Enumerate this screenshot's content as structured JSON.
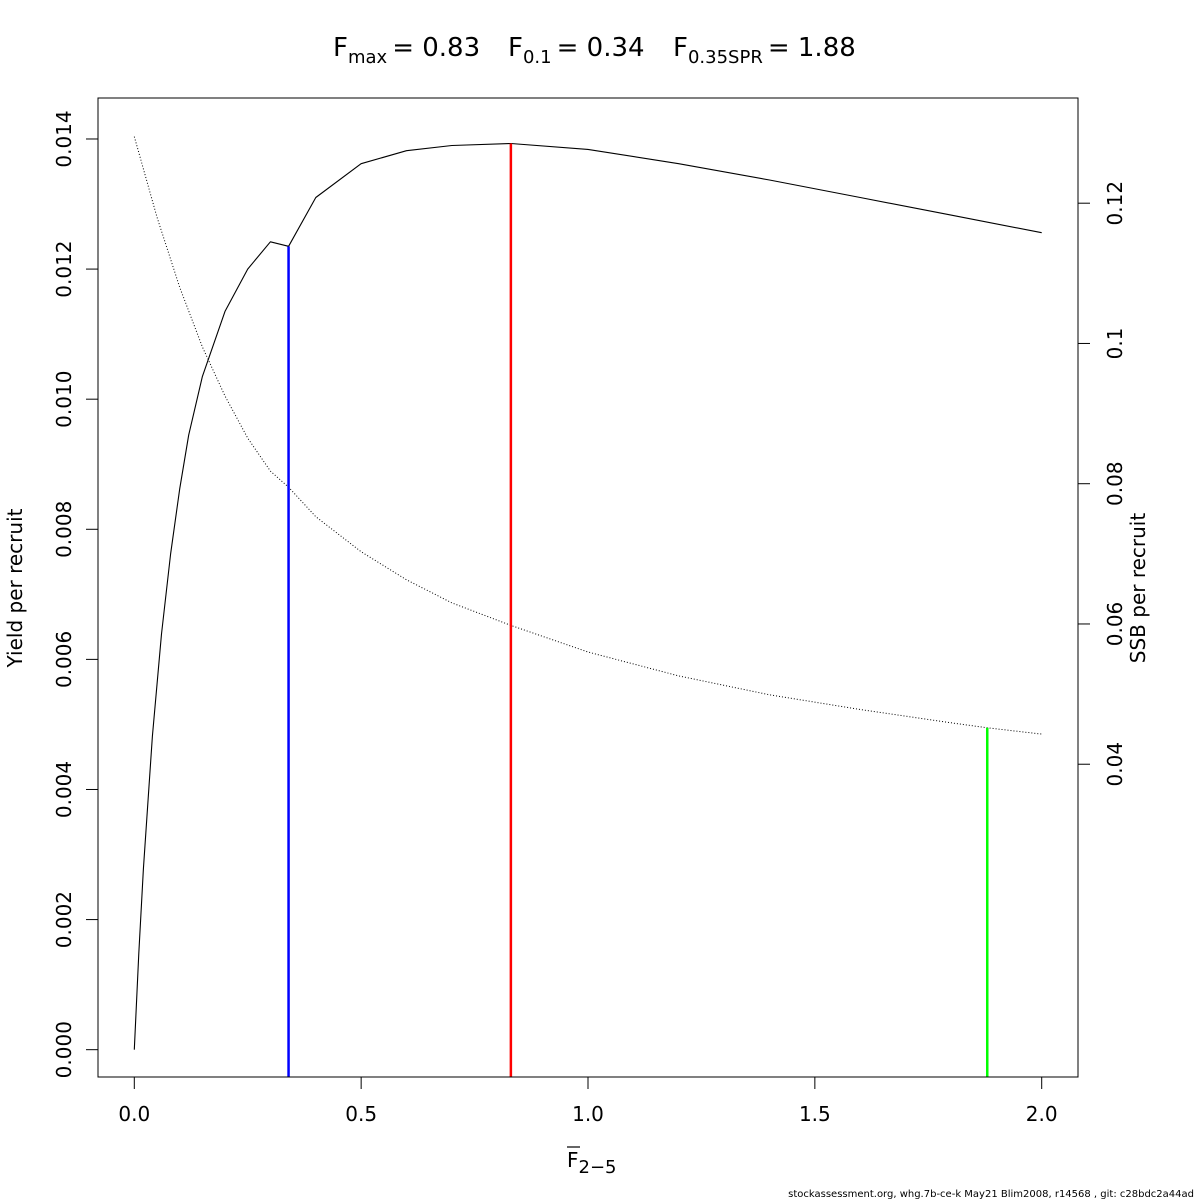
{
  "chart_data": {
    "type": "line",
    "title": {
      "fmax": {
        "sym": "F",
        "sub": "max",
        "eq": "= 0.83"
      },
      "f01": {
        "sym": "F",
        "sub": "0.1",
        "eq": "= 0.34"
      },
      "fspr": {
        "sym": "F",
        "sub": "0.35SPR",
        "eq": "= 1.88"
      }
    },
    "xlabel": {
      "sym": "F",
      "sub": "2−5"
    },
    "ylabel": "Yield per recruit",
    "y2label": "SSB per recruit",
    "xlim": [
      -0.08,
      2.08
    ],
    "ylim": [
      -0.00042,
      0.01463
    ],
    "y2lim": [
      -0.0046,
      0.135
    ],
    "x_ticks": [
      {
        "value": 0.0,
        "label": "0.0"
      },
      {
        "value": 0.5,
        "label": "0.5"
      },
      {
        "value": 1.0,
        "label": "1.0"
      },
      {
        "value": 1.5,
        "label": "1.5"
      },
      {
        "value": 2.0,
        "label": "2.0"
      }
    ],
    "y_ticks": [
      {
        "value": 0.0,
        "label": "0.000"
      },
      {
        "value": 0.002,
        "label": "0.002"
      },
      {
        "value": 0.004,
        "label": "0.004"
      },
      {
        "value": 0.006,
        "label": "0.006"
      },
      {
        "value": 0.008,
        "label": "0.008"
      },
      {
        "value": 0.01,
        "label": "0.010"
      },
      {
        "value": 0.012,
        "label": "0.012"
      },
      {
        "value": 0.014,
        "label": "0.014"
      }
    ],
    "y2_ticks": [
      {
        "value": 0.04,
        "label": "0.04"
      },
      {
        "value": 0.06,
        "label": "0.06"
      },
      {
        "value": 0.08,
        "label": "0.08"
      },
      {
        "value": 0.1,
        "label": "0.1"
      },
      {
        "value": 0.12,
        "label": "0.12"
      }
    ],
    "series": [
      {
        "key": "ypr",
        "axis": "left",
        "style": "solid",
        "color": "#000000",
        "x": [
          0,
          0.01,
          0.02,
          0.04,
          0.06,
          0.08,
          0.1,
          0.12,
          0.15,
          0.2,
          0.25,
          0.3,
          0.34,
          0.4,
          0.5,
          0.6,
          0.7,
          0.83,
          1.0,
          1.2,
          1.4,
          1.6,
          1.8,
          2.0
        ],
        "y": [
          0,
          0.00148,
          0.00278,
          0.00482,
          0.00639,
          0.00762,
          0.00862,
          0.00945,
          0.01035,
          0.01135,
          0.012,
          0.01242,
          0.01235,
          0.0131,
          0.01362,
          0.01382,
          0.0139,
          0.01393,
          0.01384,
          0.01362,
          0.01337,
          0.0131,
          0.01283,
          0.01256
        ]
      },
      {
        "key": "sspr",
        "axis": "right",
        "style": "dotted",
        "color": "#000000",
        "x": [
          0,
          0.05,
          0.1,
          0.15,
          0.2,
          0.25,
          0.3,
          0.34,
          0.4,
          0.5,
          0.6,
          0.7,
          0.83,
          1.0,
          1.2,
          1.4,
          1.6,
          1.8,
          1.88,
          2.0
        ],
        "y": [
          0.1295,
          0.118,
          0.108,
          0.0995,
          0.0925,
          0.0865,
          0.0818,
          0.0795,
          0.0753,
          0.0703,
          0.0663,
          0.063,
          0.0598,
          0.056,
          0.0526,
          0.0499,
          0.0478,
          0.0459,
          0.0452,
          0.0443
        ]
      }
    ],
    "reference_lines": [
      {
        "key": "f01",
        "x": 0.34,
        "y_top": 0.01235,
        "axis": "left",
        "color": "#0000ff"
      },
      {
        "key": "fmax",
        "x": 0.83,
        "y_top": 0.01393,
        "axis": "left",
        "color": "#ff0000"
      },
      {
        "key": "fspr",
        "x": 1.88,
        "y_top": 0.0452,
        "axis": "right",
        "color": "#00ff00"
      }
    ]
  },
  "footer": "stockassessment.org, whg.7b-ce-k  May21  Blim2008, r14568 , git: c28bdc2a44ad"
}
